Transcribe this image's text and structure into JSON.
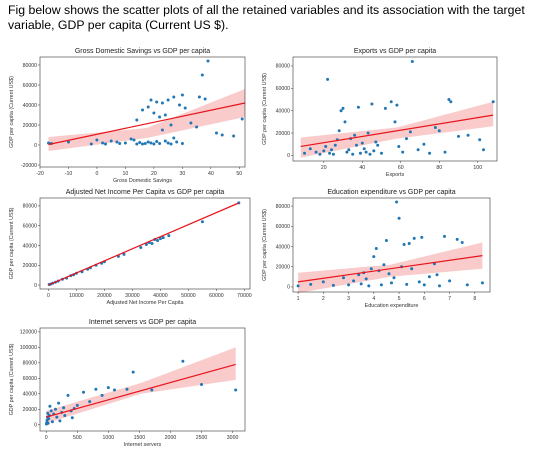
{
  "caption": "Fig below shows the scatter plots of all the retained variables and its association with the target variable, GDP per capita (Current US $).",
  "colors": {
    "point": "#1f77b4",
    "fit_line": "#e8141c",
    "band": "#f7b9b9",
    "axis": "#333333"
  },
  "chart_data": [
    {
      "type": "scatter",
      "title": "Gross Domestic Savings vs GDP per capita",
      "xlabel": "Gross Domestic Savings",
      "ylabel": "GDP per capita (Current US$)",
      "xlim": [
        -20,
        52
      ],
      "ylim": [
        -22000,
        88000
      ],
      "xticks": [
        -20,
        -10,
        0,
        10,
        20,
        30,
        40,
        50
      ],
      "yticks": [
        -20000,
        0,
        20000,
        40000,
        60000,
        80000
      ],
      "grid": false,
      "points": [
        [
          -17,
          2000
        ],
        [
          -16,
          1500
        ],
        [
          -10,
          3000
        ],
        [
          -2,
          1000
        ],
        [
          0,
          5000
        ],
        [
          2,
          2000
        ],
        [
          3,
          1000
        ],
        [
          5,
          4000
        ],
        [
          7,
          3000
        ],
        [
          8,
          1500
        ],
        [
          10,
          2000
        ],
        [
          12,
          6000
        ],
        [
          13,
          5000
        ],
        [
          14,
          1000
        ],
        [
          15,
          2500
        ],
        [
          16,
          1000
        ],
        [
          17,
          1500
        ],
        [
          18,
          3000
        ],
        [
          19,
          2000
        ],
        [
          20,
          1000
        ],
        [
          21,
          3500
        ],
        [
          22,
          1500
        ],
        [
          24,
          4000
        ],
        [
          25,
          2000
        ],
        [
          26,
          1000
        ],
        [
          27,
          7000
        ],
        [
          28,
          3000
        ],
        [
          30,
          1500
        ],
        [
          14,
          25000
        ],
        [
          16,
          35000
        ],
        [
          18,
          38000
        ],
        [
          20,
          32000
        ],
        [
          22,
          28000
        ],
        [
          24,
          30000
        ],
        [
          25,
          45000
        ],
        [
          27,
          48000
        ],
        [
          29,
          40000
        ],
        [
          31,
          37000
        ],
        [
          19,
          45000
        ],
        [
          21,
          43000
        ],
        [
          23,
          42000
        ],
        [
          33,
          22000
        ],
        [
          35,
          18000
        ],
        [
          36,
          48000
        ],
        [
          38,
          46000
        ],
        [
          30,
          50000
        ],
        [
          37,
          70000
        ],
        [
          39,
          84000
        ],
        [
          42,
          12000
        ],
        [
          44,
          10000
        ],
        [
          48,
          9000
        ],
        [
          51,
          26000
        ],
        [
          26,
          20000
        ],
        [
          23,
          15000
        ]
      ],
      "fit": {
        "x": [
          -17,
          52
        ],
        "y": [
          500,
          42000
        ]
      },
      "ci_lower": [
        -6000,
        7000,
        28000
      ],
      "ci_upper": [
        8000,
        17000,
        56000
      ]
    },
    {
      "type": "scatter",
      "title": "Exports vs GDP per capita",
      "xlabel": "Exports",
      "ylabel": "GDP per capita (Current US$)",
      "xlim": [
        4,
        110
      ],
      "ylim": [
        -5000,
        88000
      ],
      "xticks": [
        20,
        40,
        60,
        80,
        100
      ],
      "yticks": [
        0,
        20000,
        40000,
        60000,
        80000
      ],
      "grid": false,
      "points": [
        [
          10,
          2000
        ],
        [
          13,
          6000
        ],
        [
          16,
          3000
        ],
        [
          18,
          1000
        ],
        [
          20,
          4000
        ],
        [
          21,
          8000
        ],
        [
          22,
          68000
        ],
        [
          23,
          2000
        ],
        [
          24,
          5000
        ],
        [
          25,
          1000
        ],
        [
          26,
          9000
        ],
        [
          27,
          14000
        ],
        [
          28,
          22000
        ],
        [
          29,
          40000
        ],
        [
          30,
          42000
        ],
        [
          31,
          30000
        ],
        [
          32,
          3000
        ],
        [
          33,
          5000
        ],
        [
          34,
          15000
        ],
        [
          35,
          1000
        ],
        [
          36,
          18000
        ],
        [
          37,
          9000
        ],
        [
          38,
          43000
        ],
        [
          39,
          2000
        ],
        [
          40,
          11000
        ],
        [
          41,
          6000
        ],
        [
          42,
          3000
        ],
        [
          43,
          20000
        ],
        [
          44,
          1000
        ],
        [
          45,
          46000
        ],
        [
          46,
          4000
        ],
        [
          47,
          12000
        ],
        [
          48,
          9000
        ],
        [
          50,
          2000
        ],
        [
          52,
          42000
        ],
        [
          55,
          48000
        ],
        [
          57,
          30000
        ],
        [
          58,
          45000
        ],
        [
          59,
          8000
        ],
        [
          61,
          3000
        ],
        [
          63,
          15000
        ],
        [
          65,
          21000
        ],
        [
          66,
          84000
        ],
        [
          69,
          5000
        ],
        [
          72,
          10000
        ],
        [
          75,
          2000
        ],
        [
          78,
          25000
        ],
        [
          80,
          22000
        ],
        [
          83,
          3000
        ],
        [
          85,
          50000
        ],
        [
          86,
          48000
        ],
        [
          90,
          17000
        ],
        [
          95,
          18000
        ],
        [
          101,
          14000
        ],
        [
          103,
          5000
        ],
        [
          108,
          48000
        ]
      ],
      "fit": {
        "x": [
          8,
          108
        ],
        "y": [
          8000,
          36000
        ]
      },
      "ci_lower": [
        -2000,
        15000,
        26000
      ],
      "ci_upper": [
        16000,
        25000,
        48000
      ]
    },
    {
      "type": "scatter",
      "title": "Adjusted Net Income Per Capita vs GDP per capita",
      "xlabel": "Adjusted Net Income Per Capita",
      "ylabel": "GDP per capita (Current US$)",
      "xlim": [
        -3000,
        72000
      ],
      "ylim": [
        -4000,
        88000
      ],
      "xticks": [
        0,
        10000,
        20000,
        30000,
        40000,
        50000,
        60000,
        70000
      ],
      "yticks": [
        0,
        20000,
        40000,
        60000,
        80000
      ],
      "grid": false,
      "points": [
        [
          300,
          500
        ],
        [
          800,
          1000
        ],
        [
          1500,
          1800
        ],
        [
          2500,
          2800
        ],
        [
          3500,
          4000
        ],
        [
          5000,
          5800
        ],
        [
          6500,
          7000
        ],
        [
          8000,
          9500
        ],
        [
          9000,
          10500
        ],
        [
          10000,
          12000
        ],
        [
          12000,
          13500
        ],
        [
          14000,
          16000
        ],
        [
          15000,
          17500
        ],
        [
          17000,
          20000
        ],
        [
          19000,
          22000
        ],
        [
          20000,
          23500
        ],
        [
          25000,
          29000
        ],
        [
          27000,
          31000
        ],
        [
          33000,
          38000
        ],
        [
          35000,
          41000
        ],
        [
          36000,
          43000
        ],
        [
          37000,
          42000
        ],
        [
          38000,
          46000
        ],
        [
          39000,
          45000
        ],
        [
          40000,
          47000
        ],
        [
          41000,
          48000
        ],
        [
          43000,
          50000
        ],
        [
          55000,
          64000
        ],
        [
          68000,
          83000
        ]
      ],
      "fit": {
        "x": [
          0,
          68000
        ],
        "y": [
          0,
          83000
        ]
      },
      "ci_lower": [
        -700,
        41500,
        82000
      ],
      "ci_upper": [
        700,
        42500,
        84000
      ]
    },
    {
      "type": "scatter",
      "title": "Education expenditure vs GDP per capita",
      "xlabel": "Education expenditure",
      "ylabel": "GDP per capita (Current US$)",
      "xlim": [
        0.8,
        8.6
      ],
      "ylim": [
        -5000,
        88000
      ],
      "xticks": [
        1,
        2,
        3,
        4,
        5,
        6,
        7,
        8
      ],
      "yticks": [
        0,
        20000,
        40000,
        60000,
        80000
      ],
      "grid": false,
      "points": [
        [
          1.0,
          1000
        ],
        [
          1.5,
          2500
        ],
        [
          2.0,
          5000
        ],
        [
          2.4,
          1500
        ],
        [
          2.8,
          9000
        ],
        [
          3.0,
          2000
        ],
        [
          3.2,
          6000
        ],
        [
          3.4,
          12000
        ],
        [
          3.5,
          3000
        ],
        [
          3.6,
          14000
        ],
        [
          3.7,
          8000
        ],
        [
          3.8,
          1000
        ],
        [
          3.9,
          18000
        ],
        [
          4.0,
          30000
        ],
        [
          4.1,
          38000
        ],
        [
          4.2,
          16000
        ],
        [
          4.3,
          2000
        ],
        [
          4.4,
          22000
        ],
        [
          4.5,
          46000
        ],
        [
          4.6,
          13000
        ],
        [
          4.7,
          4000
        ],
        [
          4.8,
          9000
        ],
        [
          4.9,
          84000
        ],
        [
          5.0,
          68000
        ],
        [
          5.1,
          20000
        ],
        [
          5.2,
          42000
        ],
        [
          5.3,
          2500
        ],
        [
          5.4,
          43000
        ],
        [
          5.5,
          18000
        ],
        [
          5.6,
          48000
        ],
        [
          5.8,
          5000
        ],
        [
          5.9,
          49000
        ],
        [
          6.0,
          2000
        ],
        [
          6.2,
          10000
        ],
        [
          6.4,
          23000
        ],
        [
          6.5,
          12000
        ],
        [
          6.6,
          1000
        ],
        [
          6.8,
          50000
        ],
        [
          7.0,
          6000
        ],
        [
          7.3,
          47000
        ],
        [
          7.5,
          44000
        ],
        [
          7.7,
          2000
        ],
        [
          8.3,
          4000
        ]
      ],
      "fit": {
        "x": [
          1.0,
          8.3
        ],
        "y": [
          5000,
          31000
        ]
      },
      "ci_lower": [
        -6000,
        10000,
        18000
      ],
      "ci_upper": [
        14000,
        22000,
        44000
      ]
    },
    {
      "type": "scatter",
      "title": "Internet servers vs GDP per capita",
      "xlabel": "Internet servers",
      "ylabel": "GDP per capita (Current US$)",
      "xlim": [
        -100,
        3200
      ],
      "ylim": [
        -8000,
        125000
      ],
      "xticks": [
        0,
        500,
        1000,
        1500,
        2000,
        2500,
        3000
      ],
      "yticks": [
        0,
        20000,
        40000,
        60000,
        80000,
        100000,
        120000
      ],
      "grid": false,
      "points": [
        [
          5,
          1000
        ],
        [
          10,
          3000
        ],
        [
          15,
          6000
        ],
        [
          20,
          10000
        ],
        [
          25,
          15000
        ],
        [
          30,
          2000
        ],
        [
          40,
          8000
        ],
        [
          50,
          12000
        ],
        [
          60,
          24000
        ],
        [
          80,
          18000
        ],
        [
          100,
          4000
        ],
        [
          120,
          14000
        ],
        [
          150,
          20000
        ],
        [
          170,
          10000
        ],
        [
          200,
          28000
        ],
        [
          220,
          5000
        ],
        [
          250,
          16000
        ],
        [
          280,
          22000
        ],
        [
          300,
          12000
        ],
        [
          350,
          38000
        ],
        [
          400,
          18000
        ],
        [
          420,
          9000
        ],
        [
          450,
          21000
        ],
        [
          500,
          25000
        ],
        [
          600,
          42000
        ],
        [
          700,
          30000
        ],
        [
          800,
          46000
        ],
        [
          900,
          38000
        ],
        [
          1000,
          48000
        ],
        [
          1100,
          45000
        ],
        [
          1300,
          46000
        ],
        [
          1400,
          68000
        ],
        [
          1700,
          45000
        ],
        [
          2200,
          82000
        ],
        [
          2500,
          52000
        ],
        [
          3050,
          45000
        ]
      ],
      "fit": {
        "x": [
          0,
          3050
        ],
        "y": [
          10000,
          78000
        ]
      },
      "ci_lower": [
        2000,
        40000,
        58000
      ],
      "ci_upper": [
        18000,
        54000,
        100000
      ]
    }
  ]
}
